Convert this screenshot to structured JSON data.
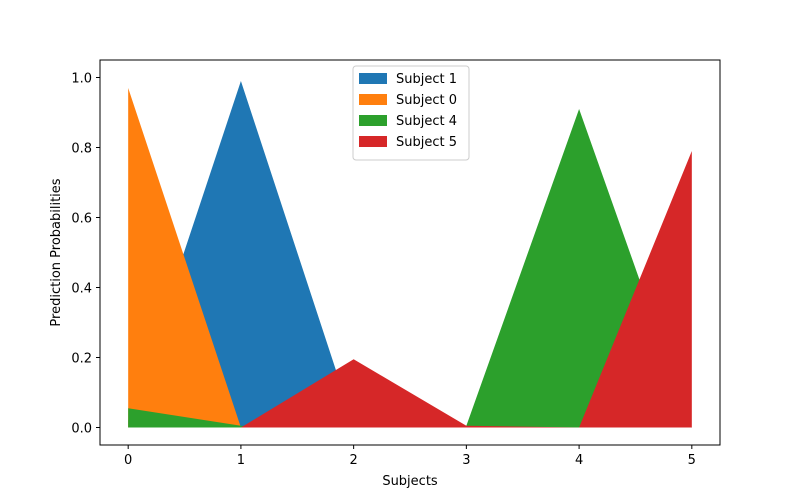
{
  "chart_data": {
    "type": "area",
    "title": "",
    "xlabel": "Subjects",
    "ylabel": "Prediction Probabilities",
    "x": [
      0,
      1,
      2,
      3,
      4,
      5
    ],
    "xlim": [
      -0.25,
      5.25
    ],
    "ylim": [
      -0.05,
      1.05
    ],
    "xticks": [
      "0",
      "1",
      "2",
      "3",
      "4",
      "5"
    ],
    "yticks": [
      "0.0",
      "0.2",
      "0.4",
      "0.6",
      "0.8",
      "1.0"
    ],
    "grid": false,
    "legend_position": "top-center",
    "series": [
      {
        "name": "Subject 1",
        "color": "#1f77b4",
        "values": [
          0.02,
          0.99,
          0.01,
          0.0,
          0.0,
          0.0
        ]
      },
      {
        "name": "Subject 0",
        "color": "#ff7f0e",
        "values": [
          0.97,
          0.0,
          0.0,
          0.0,
          0.0,
          0.0
        ]
      },
      {
        "name": "Subject 4",
        "color": "#2ca02c",
        "values": [
          0.055,
          0.005,
          0.0,
          0.005,
          0.91,
          0.0
        ]
      },
      {
        "name": "Subject 5",
        "color": "#d62728",
        "values": [
          0.0,
          0.0,
          0.195,
          0.005,
          0.0,
          0.79
        ]
      }
    ]
  }
}
